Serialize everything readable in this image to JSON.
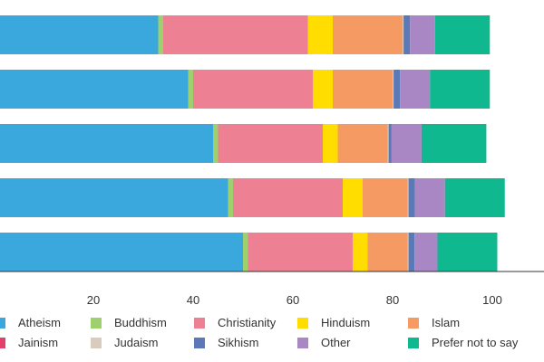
{
  "chart_data": {
    "type": "bar",
    "orientation": "horizontal",
    "stacked": true,
    "xlim": [
      -5,
      105
    ],
    "x_ticks": [
      20,
      40,
      60,
      80,
      100
    ],
    "grid": false,
    "legend_position": "bottom",
    "categories": [
      "",
      "",
      "",
      "",
      ""
    ],
    "series": [
      {
        "name": "Atheism",
        "color": "#3aa8dc",
        "values": [
          33,
          39,
          44,
          47,
          50
        ]
      },
      {
        "name": "Buddhism",
        "color": "#9fd06e",
        "values": [
          1,
          1,
          1,
          1,
          1
        ]
      },
      {
        "name": "Christianity",
        "color": "#ee8093",
        "values": [
          29,
          24,
          21,
          22,
          21
        ]
      },
      {
        "name": "Hinduism",
        "color": "#ffdd00",
        "values": [
          5,
          4,
          3,
          4,
          3
        ]
      },
      {
        "name": "Islam",
        "color": "#f49a62",
        "values": [
          14,
          12,
          10,
          9,
          8
        ]
      },
      {
        "name": "Jainism",
        "color": "#e33f6c",
        "values": [
          0,
          0,
          0,
          0,
          0
        ]
      },
      {
        "name": "Judaism",
        "color": "#d9cbbd",
        "values": [
          0.2,
          0.2,
          0.2,
          0.2,
          0.2
        ]
      },
      {
        "name": "Sikhism",
        "color": "#5b79b6",
        "values": [
          1.3,
          1.3,
          0.6,
          1.3,
          1.2
        ]
      },
      {
        "name": "Other",
        "color": "#a986c4",
        "values": [
          5,
          6,
          6,
          6,
          4.6
        ]
      },
      {
        "name": "Prefer not to say",
        "color": "#10b890",
        "values": [
          11,
          12,
          13,
          12,
          12
        ]
      }
    ]
  }
}
